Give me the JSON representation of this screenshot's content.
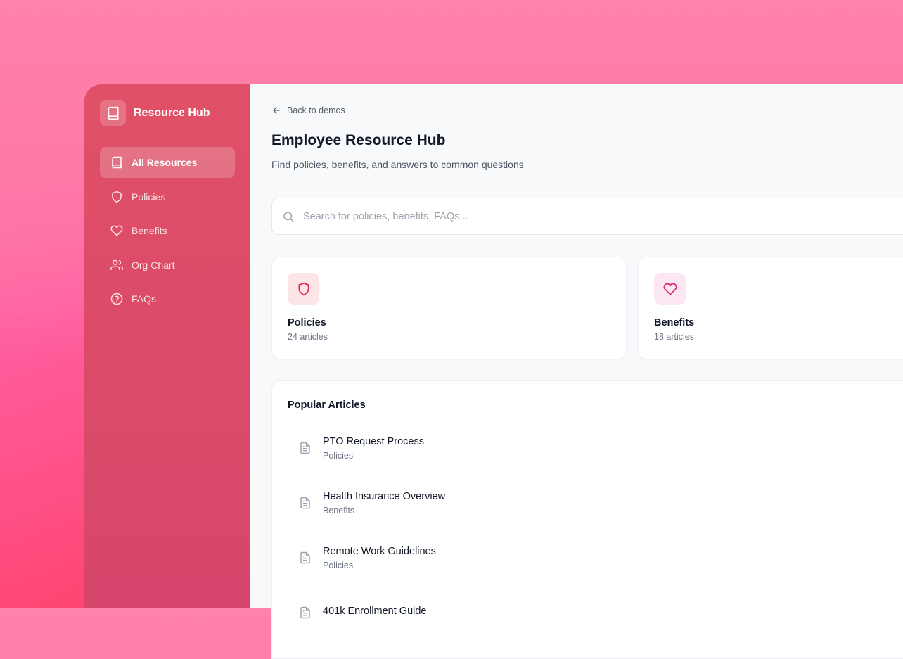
{
  "sidebar": {
    "brand": "Resource Hub",
    "items": [
      {
        "label": "All Resources",
        "icon": "book-icon",
        "active": true
      },
      {
        "label": "Policies",
        "icon": "shield-icon"
      },
      {
        "label": "Benefits",
        "icon": "heart-icon"
      },
      {
        "label": "Org Chart",
        "icon": "users-icon"
      },
      {
        "label": "FAQs",
        "icon": "help-circle-icon"
      }
    ]
  },
  "main": {
    "back": "Back to demos",
    "title": "Employee Resource Hub",
    "subtitle": "Find policies, benefits, and answers to common questions",
    "search_placeholder": "Search for policies, benefits, FAQs...",
    "cards": [
      {
        "title": "Policies",
        "count": "24 articles",
        "color": "#e11d48",
        "bg": "#fde4e7"
      },
      {
        "title": "Benefits",
        "count": "18 articles",
        "color": "#db2777",
        "bg": "#fce7f3"
      }
    ],
    "popular": {
      "title": "Popular Articles",
      "articles": [
        {
          "title": "PTO Request Process",
          "category": "Policies"
        },
        {
          "title": "Health Insurance Overview",
          "category": "Benefits"
        },
        {
          "title": "Remote Work Guidelines",
          "category": "Policies"
        },
        {
          "title": "401k Enrollment Guide",
          "category": ""
        }
      ]
    }
  }
}
